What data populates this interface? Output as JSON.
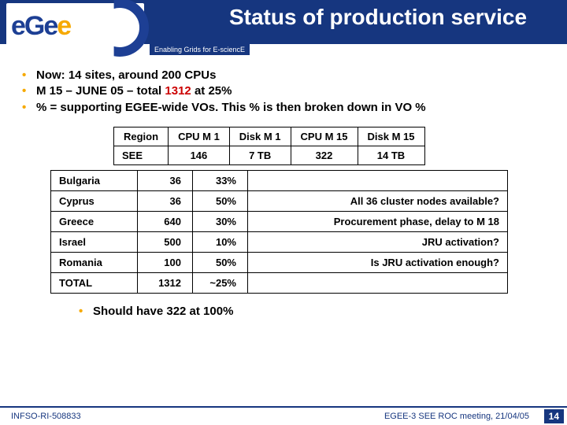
{
  "header": {
    "title": "Status of production service",
    "subtitle": "Enabling Grids for E-sciencE",
    "logo_letters": [
      "e",
      "G",
      "e",
      "e"
    ]
  },
  "bullets": [
    {
      "prefix": "Now: 14 sites, around 200 CPUs",
      "red": "",
      "suffix": ""
    },
    {
      "prefix": "M 15 – JUNE 05 – total ",
      "red": "1312",
      "suffix": " at 25%"
    },
    {
      "prefix": "% = supporting EGEE-wide VOs. This % is then broken down in VO %",
      "red": "",
      "suffix": ""
    }
  ],
  "region_table": {
    "headers": [
      "Region",
      "CPU M 1",
      "Disk M 1",
      "CPU M 15",
      "Disk M 15"
    ],
    "row": [
      "SEE",
      "146",
      "7 TB",
      "322",
      "14 TB"
    ]
  },
  "country_table": {
    "rows": [
      {
        "name": "Bulgaria",
        "cpu": "36",
        "pct": "33%",
        "note": ""
      },
      {
        "name": "Cyprus",
        "cpu": "36",
        "pct": "50%",
        "note": "All 36 cluster nodes available?"
      },
      {
        "name": "Greece",
        "cpu": "640",
        "pct": "30%",
        "note": "Procurement phase, delay to M 18"
      },
      {
        "name": "Israel",
        "cpu": "500",
        "pct": "10%",
        "note": "JRU activation?"
      },
      {
        "name": "Romania",
        "cpu": "100",
        "pct": "50%",
        "note": "Is JRU activation enough?"
      },
      {
        "name": "TOTAL",
        "cpu": "1312",
        "pct": "~25%",
        "note": ""
      }
    ]
  },
  "sub_bullet": "Should have 322 at 100%",
  "footer": {
    "left": "INFSO-RI-508833",
    "meeting": "EGEE-3 SEE ROC meeting, 21/04/05",
    "page": "14"
  },
  "colors": {
    "brand_blue": "#16367f",
    "accent_orange": "#f6a900",
    "red": "#cc0000"
  }
}
